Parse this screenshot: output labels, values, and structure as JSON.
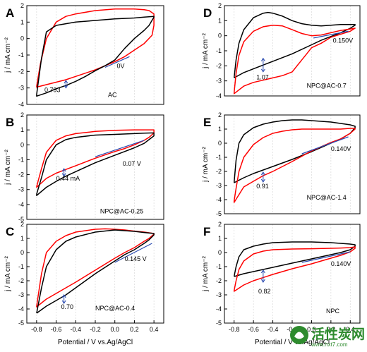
{
  "chart_data": [
    {
      "panel": "A",
      "type": "line",
      "ylabel": "j / mA cm⁻²",
      "xlabel": "",
      "xlim": [
        -0.9,
        0.5
      ],
      "ylim": [
        -4,
        2
      ],
      "yticks": [
        -4,
        -3,
        -2,
        -1,
        0,
        1,
        2
      ],
      "xticks": [],
      "series": [
        {
          "color": "#ff0000",
          "x": [
            -0.8,
            -0.76,
            -0.7,
            -0.6,
            -0.5,
            -0.4,
            -0.2,
            0,
            0.2,
            0.3,
            0.35,
            0.4,
            0.4,
            0.38,
            0.3,
            0.2,
            0.1,
            0,
            -0.1,
            -0.2,
            -0.3,
            -0.4,
            -0.5,
            -0.6,
            -0.7,
            -0.8,
            -0.8
          ],
          "y": [
            -2.9,
            -1.5,
            0,
            1.0,
            1.35,
            1.5,
            1.7,
            1.8,
            1.8,
            1.75,
            1.7,
            1.5,
            0.8,
            0.2,
            -0.3,
            -0.7,
            -1.1,
            -1.4,
            -1.65,
            -1.9,
            -2.1,
            -2.3,
            -2.5,
            -2.65,
            -2.8,
            -2.95,
            -2.9
          ]
        },
        {
          "color": "#000000",
          "x": [
            -0.8,
            -0.75,
            -0.7,
            -0.6,
            -0.4,
            -0.2,
            0,
            0.2,
            0.3,
            0.4,
            0.4,
            0.35,
            0.3,
            0.2,
            0.1,
            0,
            -0.1,
            -0.2,
            -0.3,
            -0.4,
            -0.5,
            -0.6,
            -0.7,
            -0.8,
            -0.8
          ],
          "y": [
            -3.4,
            -1.2,
            0.4,
            0.8,
            1.0,
            1.1,
            1.2,
            1.25,
            1.3,
            1.35,
            1.3,
            0.8,
            0.5,
            0,
            -0.6,
            -1.3,
            -1.65,
            -1.95,
            -2.3,
            -2.6,
            -2.85,
            -3.05,
            -3.3,
            -3.5,
            -3.4
          ]
        }
      ],
      "annotations": [
        {
          "text": "0.793",
          "x": -0.72,
          "y": -3.25
        },
        {
          "text": "0V",
          "x": 0.02,
          "y": -1.8
        }
      ],
      "arrow": {
        "x": -0.5,
        "y1": -2.55,
        "y2": -3.0
      },
      "tangent": {
        "x1": -0.1,
        "y1": -1.75,
        "x2": 0.15,
        "y2": -1.1
      },
      "label": "AC",
      "label_pos": {
        "x": -0.07,
        "y": -3.55
      }
    },
    {
      "panel": "B",
      "type": "line",
      "ylabel": "j / mA cm⁻²",
      "xlabel": "",
      "xlim": [
        -0.9,
        0.5
      ],
      "ylim": [
        -5,
        2
      ],
      "yticks": [
        -5,
        -4,
        -3,
        -2,
        -1,
        0,
        1,
        2
      ],
      "xticks": [],
      "series": [
        {
          "color": "#ff0000",
          "x": [
            -0.8,
            -0.75,
            -0.7,
            -0.6,
            -0.5,
            -0.4,
            -0.2,
            0,
            0.2,
            0.3,
            0.4,
            0.4,
            0.35,
            0.3,
            0.2,
            0.1,
            0,
            -0.2,
            -0.4,
            -0.5,
            -0.6,
            -0.7,
            -0.8,
            -0.8
          ],
          "y": [
            -2.8,
            -1.6,
            -0.5,
            0.3,
            0.6,
            0.75,
            0.9,
            0.97,
            1.0,
            1.0,
            1.0,
            0.8,
            0.5,
            0.3,
            0,
            -0.25,
            -0.45,
            -0.9,
            -1.4,
            -1.65,
            -1.9,
            -2.25,
            -2.85,
            -2.8
          ]
        },
        {
          "color": "#000000",
          "x": [
            -0.8,
            -0.75,
            -0.7,
            -0.6,
            -0.5,
            -0.4,
            -0.2,
            0,
            0.2,
            0.3,
            0.4,
            0.4,
            0.35,
            0.3,
            0.2,
            0.1,
            0,
            -0.2,
            -0.4,
            -0.5,
            -0.6,
            -0.7,
            -0.8,
            -0.8
          ],
          "y": [
            -3.3,
            -2.2,
            -1.0,
            0,
            0.35,
            0.5,
            0.65,
            0.7,
            0.75,
            0.78,
            0.8,
            0.6,
            0.35,
            0.1,
            -0.2,
            -0.45,
            -0.7,
            -1.2,
            -1.8,
            -2.1,
            -2.45,
            -2.85,
            -3.4,
            -3.3
          ]
        }
      ],
      "annotations": [
        {
          "text": "0.44 mA",
          "x": -0.6,
          "y": -2.4
        },
        {
          "text": "0.07 V",
          "x": 0.08,
          "y": -1.4
        }
      ],
      "arrow": {
        "x": -0.52,
        "y1": -1.6,
        "y2": -2.1
      },
      "tangent": {
        "x1": -0.2,
        "y1": -0.8,
        "x2": 0.3,
        "y2": 0.3
      },
      "label": "NPC@AC-0.25",
      "label_pos": {
        "x": -0.15,
        "y": -4.6
      }
    },
    {
      "panel": "C",
      "type": "line",
      "ylabel": "j / mA cm⁻²",
      "xlabel": "Potential / V vs.Ag/AgCl",
      "xlim": [
        -0.9,
        0.5
      ],
      "ylim": [
        -5,
        2
      ],
      "yticks": [
        -5,
        -4,
        -3,
        -2,
        -1,
        0,
        1,
        2
      ],
      "xticks": [
        -0.8,
        -0.6,
        -0.4,
        -0.2,
        0.0,
        0.2,
        0.4
      ],
      "xticklabels": [
        "-0.8",
        "-0.6",
        "-0.4",
        "-0.2",
        "0.0",
        "0.2",
        "0.4"
      ],
      "series": [
        {
          "color": "#ff0000",
          "x": [
            -0.8,
            -0.75,
            -0.7,
            -0.6,
            -0.5,
            -0.4,
            -0.2,
            -0.1,
            0,
            0.1,
            0.2,
            0.3,
            0.4,
            0.4,
            0.35,
            0.3,
            0.2,
            0.1,
            0,
            -0.2,
            -0.4,
            -0.5,
            -0.6,
            -0.7,
            -0.8,
            -0.8
          ],
          "y": [
            -3.8,
            -1.5,
            0,
            0.8,
            1.2,
            1.45,
            1.65,
            1.68,
            1.65,
            1.6,
            1.52,
            1.45,
            1.35,
            1.3,
            1.0,
            0.8,
            0.35,
            0,
            -0.4,
            -1.25,
            -2.1,
            -2.5,
            -2.9,
            -3.3,
            -3.85,
            -3.8
          ]
        },
        {
          "color": "#000000",
          "x": [
            -0.8,
            -0.75,
            -0.7,
            -0.6,
            -0.5,
            -0.4,
            -0.2,
            0,
            0.2,
            0.3,
            0.4,
            0.4,
            0.35,
            0.3,
            0.2,
            0.1,
            0,
            -0.2,
            -0.4,
            -0.5,
            -0.6,
            -0.7,
            -0.8,
            -0.8
          ],
          "y": [
            -4.3,
            -2.5,
            -1.0,
            0.2,
            0.8,
            1.1,
            1.45,
            1.6,
            1.5,
            1.42,
            1.35,
            1.25,
            0.9,
            0.65,
            0.2,
            -0.15,
            -0.6,
            -1.5,
            -2.5,
            -3.0,
            -3.4,
            -3.8,
            -4.3,
            -4.3
          ]
        }
      ],
      "annotations": [
        {
          "text": "0.70",
          "x": -0.55,
          "y": -4.0
        },
        {
          "text": "0.145 V",
          "x": 0.1,
          "y": -0.6
        }
      ],
      "arrow": {
        "x": -0.52,
        "y1": -3.0,
        "y2": -3.6
      },
      "tangent": {
        "x1": 0.0,
        "y1": -0.7,
        "x2": 0.38,
        "y2": 0.65
      },
      "label": "NPC@AC-0.4",
      "label_pos": {
        "x": -0.2,
        "y": -4.1
      }
    },
    {
      "panel": "D",
      "type": "line",
      "ylabel": "j / mA cm⁻²",
      "xlabel": "",
      "xlim": [
        -0.9,
        0.5
      ],
      "ylim": [
        -4,
        2
      ],
      "yticks": [
        -4,
        -3,
        -2,
        -1,
        0,
        1,
        2
      ],
      "xticks": [],
      "series": [
        {
          "color": "#000000",
          "x": [
            -0.8,
            -0.78,
            -0.75,
            -0.7,
            -0.6,
            -0.5,
            -0.45,
            -0.4,
            -0.3,
            -0.2,
            -0.1,
            0,
            0.1,
            0.2,
            0.3,
            0.4,
            0.45,
            0.45,
            0.4,
            0.3,
            0.2,
            0.1,
            0,
            -0.2,
            -0.4,
            -0.6,
            -0.7,
            -0.8,
            -0.8
          ],
          "y": [
            -2.8,
            -1.6,
            -0.5,
            0.4,
            1.2,
            1.5,
            1.55,
            1.5,
            1.3,
            1.0,
            0.8,
            0.7,
            0.65,
            0.7,
            0.75,
            0.75,
            0.75,
            0.7,
            0.5,
            0.2,
            -0.05,
            -0.3,
            -0.6,
            -1.2,
            -1.7,
            -2.2,
            -2.45,
            -2.8,
            -2.8
          ]
        },
        {
          "color": "#ff0000",
          "x": [
            -0.8,
            -0.78,
            -0.75,
            -0.7,
            -0.6,
            -0.5,
            -0.4,
            -0.3,
            -0.2,
            -0.1,
            0,
            0.1,
            0.2,
            0.3,
            0.4,
            0.45,
            0.45,
            0.4,
            0.3,
            0.2,
            0.15,
            0.1,
            0,
            -0.05,
            -0.1,
            -0.2,
            -0.3,
            -0.4,
            -0.6,
            -0.7,
            -0.8,
            -0.8
          ],
          "y": [
            -3.8,
            -2.5,
            -1.3,
            -0.4,
            0.3,
            0.6,
            0.7,
            0.65,
            0.4,
            0.15,
            0.0,
            0.05,
            0.2,
            0.35,
            0.45,
            0.5,
            0.5,
            0.3,
            0.1,
            -0.1,
            -0.3,
            -0.5,
            -0.8,
            -1.2,
            -1.6,
            -2.4,
            -2.65,
            -2.8,
            -3.1,
            -3.35,
            -3.85,
            -3.8
          ]
        }
      ],
      "annotations": [
        {
          "text": "1.07",
          "x": -0.57,
          "y": -2.9
        },
        {
          "text": "0.150V",
          "x": 0.22,
          "y": -0.45
        }
      ],
      "arrow": {
        "x": -0.5,
        "y1": -1.5,
        "y2": -2.4
      },
      "tangent": {
        "x1": 0.02,
        "y1": -0.15,
        "x2": 0.38,
        "y2": 0.3
      },
      "label": "NPC@AC-0.7",
      "label_pos": {
        "x": -0.05,
        "y": -3.45
      }
    },
    {
      "panel": "E",
      "type": "line",
      "ylabel": "j / mA cm⁻²",
      "xlabel": "",
      "xlim": [
        -0.9,
        0.5
      ],
      "ylim": [
        -5,
        2
      ],
      "yticks": [
        -5,
        -4,
        -3,
        -2,
        -1,
        0,
        1,
        2
      ],
      "xticks": [],
      "series": [
        {
          "color": "#000000",
          "x": [
            -0.8,
            -0.78,
            -0.75,
            -0.7,
            -0.6,
            -0.5,
            -0.4,
            -0.3,
            -0.2,
            -0.1,
            0,
            0.1,
            0.2,
            0.3,
            0.4,
            0.45,
            0.45,
            0.4,
            0.3,
            0.2,
            0.1,
            0,
            -0.2,
            -0.4,
            -0.6,
            -0.7,
            -0.8,
            -0.8
          ],
          "y": [
            -2.8,
            -1.2,
            0,
            0.6,
            1.1,
            1.35,
            1.5,
            1.6,
            1.65,
            1.65,
            1.6,
            1.55,
            1.5,
            1.4,
            1.3,
            1.2,
            1.1,
            0.7,
            0.3,
            0,
            -0.3,
            -0.6,
            -1.15,
            -1.65,
            -2.15,
            -2.45,
            -2.8,
            -2.8
          ]
        },
        {
          "color": "#ff0000",
          "x": [
            -0.8,
            -0.78,
            -0.75,
            -0.7,
            -0.6,
            -0.5,
            -0.4,
            -0.3,
            -0.2,
            -0.1,
            0,
            0.1,
            0.2,
            0.3,
            0.4,
            0.45,
            0.45,
            0.4,
            0.3,
            0.2,
            0.1,
            0,
            -0.2,
            -0.4,
            -0.5,
            -0.6,
            -0.7,
            -0.8,
            -0.8
          ],
          "y": [
            -4.1,
            -3.2,
            -2.0,
            -1.0,
            -0.1,
            0.4,
            0.7,
            0.85,
            0.95,
            1.0,
            1.0,
            1.0,
            1.0,
            1.0,
            1.05,
            1.05,
            1.0,
            0.7,
            0.3,
            0.05,
            -0.25,
            -0.55,
            -1.3,
            -2.0,
            -2.3,
            -2.7,
            -3.1,
            -4.2,
            -4.1
          ]
        }
      ],
      "annotations": [
        {
          "text": "0.91",
          "x": -0.57,
          "y": -3.2
        },
        {
          "text": "0.140V",
          "x": 0.2,
          "y": -0.55
        }
      ],
      "arrow": {
        "x": -0.5,
        "y1": -2.05,
        "y2": -2.75
      },
      "tangent": {
        "x1": -0.1,
        "y1": -0.75,
        "x2": 0.38,
        "y2": 0.45
      },
      "label": "NPC@AC-1.4",
      "label_pos": {
        "x": -0.05,
        "y": -4.0
      }
    },
    {
      "panel": "F",
      "type": "line",
      "ylabel": "j / mA cm⁻²",
      "xlabel": "Potential / V vs.Ag/AgCl",
      "xlim": [
        -0.9,
        0.5
      ],
      "ylim": [
        -5,
        2
      ],
      "yticks": [
        -5,
        -4,
        -3,
        -2,
        -1,
        0,
        1,
        2
      ],
      "xticks": [
        -0.8,
        -0.6,
        -0.4,
        -0.2,
        0.0,
        0.2,
        0.4
      ],
      "xticklabels": [
        "-0.8",
        "-0.6",
        "-0.4",
        "-0.2",
        "0.0",
        "0.2",
        "0.4"
      ],
      "series": [
        {
          "color": "#000000",
          "x": [
            -0.8,
            -0.78,
            -0.75,
            -0.7,
            -0.6,
            -0.5,
            -0.4,
            -0.2,
            0,
            0.2,
            0.3,
            0.4,
            0.45,
            0.45,
            0.4,
            0.3,
            0.2,
            0.1,
            0,
            -0.2,
            -0.4,
            -0.6,
            -0.7,
            -0.8,
            -0.8
          ],
          "y": [
            -1.7,
            -1.0,
            -0.3,
            0.2,
            0.45,
            0.6,
            0.7,
            0.75,
            0.75,
            0.7,
            0.65,
            0.6,
            0.55,
            0.45,
            0.2,
            0,
            -0.15,
            -0.3,
            -0.45,
            -0.75,
            -1.05,
            -1.35,
            -1.5,
            -1.7,
            -1.7
          ]
        },
        {
          "color": "#ff0000",
          "x": [
            -0.8,
            -0.78,
            -0.75,
            -0.7,
            -0.6,
            -0.5,
            -0.4,
            -0.2,
            0,
            0.2,
            0.3,
            0.4,
            0.45,
            0.45,
            0.4,
            0.3,
            0.2,
            0.1,
            0,
            -0.2,
            -0.4,
            -0.6,
            -0.7,
            -0.8,
            -0.8
          ],
          "y": [
            -2.7,
            -2.0,
            -1.2,
            -0.6,
            -0.1,
            0.1,
            0.2,
            0.25,
            0.27,
            0.3,
            0.32,
            0.35,
            0.4,
            0.3,
            0.05,
            -0.2,
            -0.4,
            -0.6,
            -0.8,
            -1.15,
            -1.55,
            -2.0,
            -2.3,
            -2.75,
            -2.7
          ]
        }
      ],
      "annotations": [
        {
          "text": "0.82",
          "x": -0.55,
          "y": -2.9
        },
        {
          "text": "0.140V",
          "x": 0.2,
          "y": -0.95
        }
      ],
      "arrow": {
        "x": -0.5,
        "y1": -1.25,
        "y2": -2.1
      },
      "tangent": {
        "x1": -0.1,
        "y1": -0.7,
        "x2": 0.4,
        "y2": 0.05
      },
      "label": "NPC",
      "label_pos": {
        "x": 0.15,
        "y": -4.3
      }
    }
  ],
  "watermark": {
    "logo_text": "活性炭网",
    "url_text": "www.hxt7.com",
    "color": "#2e8b2e"
  },
  "colors": {
    "axis": "#000000",
    "arrow": "#2b4bb0",
    "tangent": "#2b4bb0",
    "grid": "#d8d8d8"
  }
}
